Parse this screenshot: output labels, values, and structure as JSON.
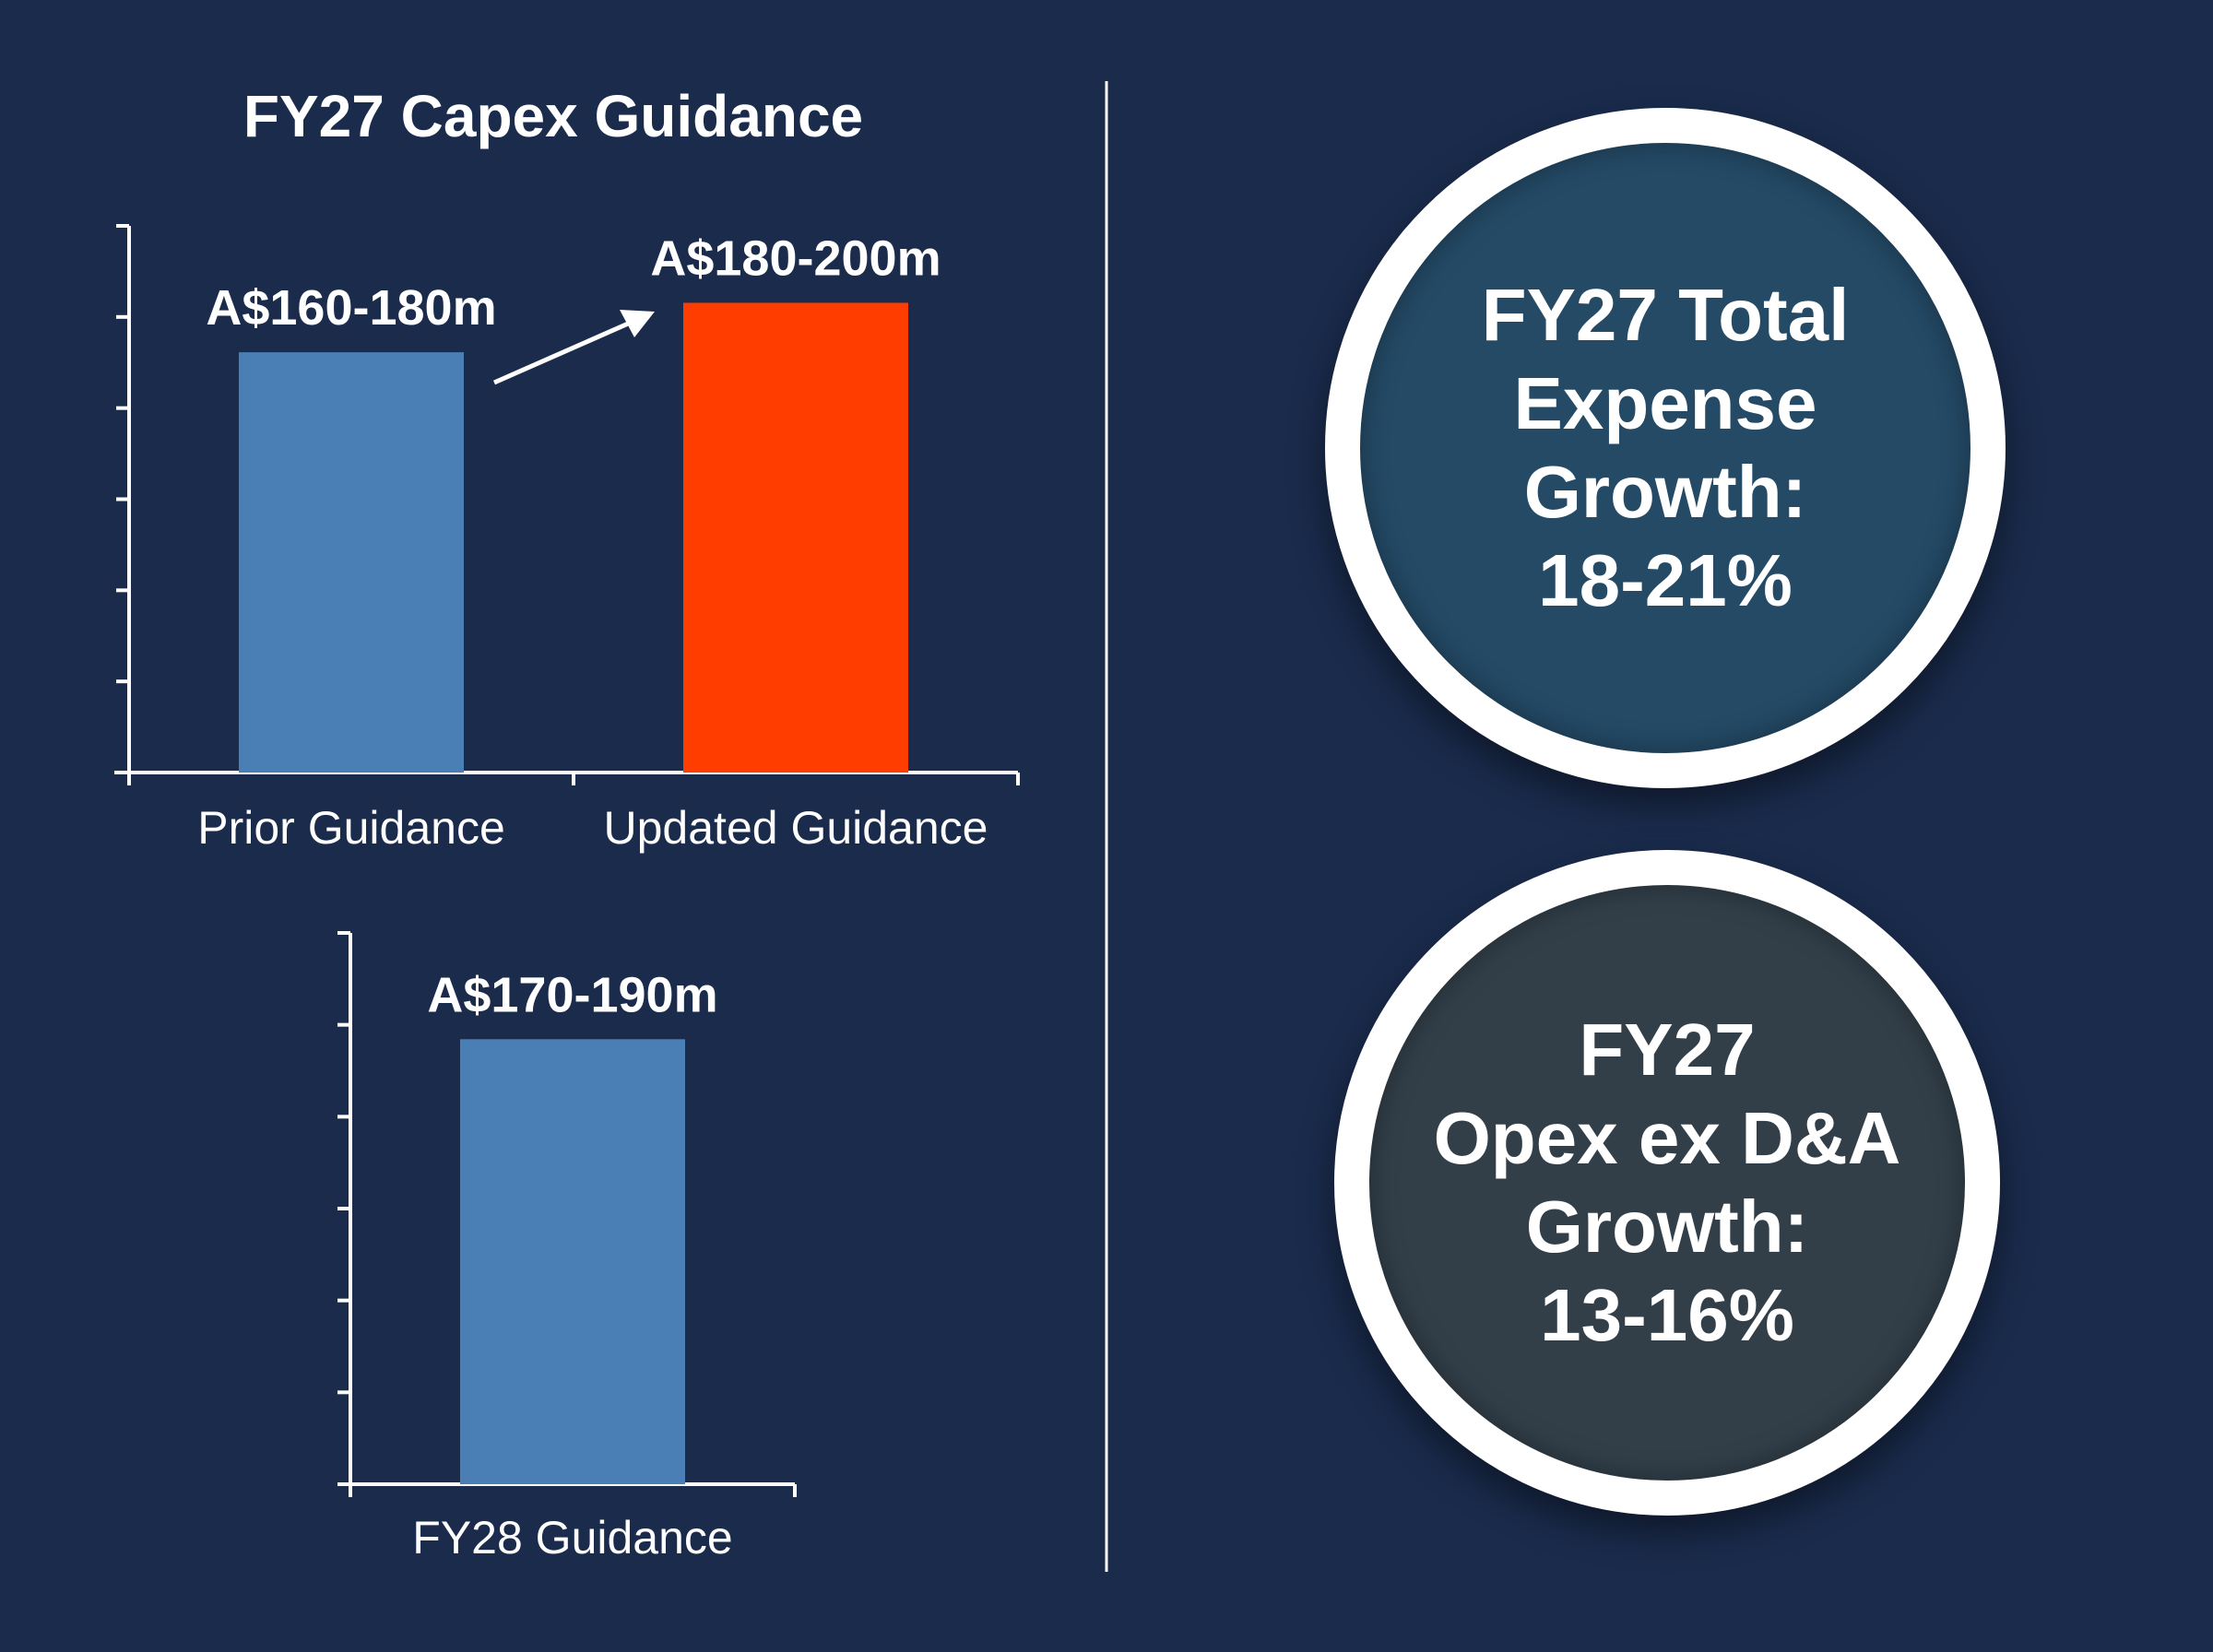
{
  "chart_data": [
    {
      "type": "bar",
      "title": "FY27 Capex Guidance",
      "categories": [
        "Prior Guidance",
        "Updated Guidance"
      ],
      "values": [
        170,
        190
      ],
      "value_labels": [
        "A$160-180m",
        "A$180-200m"
      ],
      "colors": [
        "#4a7fb5",
        "#ff3d00"
      ],
      "ylim": [
        0,
        220
      ],
      "grid": false,
      "annotation": "arrow from Prior Guidance to Updated Guidance"
    },
    {
      "type": "bar",
      "title": "",
      "categories": [
        "FY28 Guidance"
      ],
      "values": [
        180
      ],
      "value_labels": [
        "A$170-190m"
      ],
      "colors": [
        "#4a7fb5"
      ],
      "ylim": [
        0,
        220
      ],
      "grid": false
    }
  ],
  "callouts": [
    {
      "lines": [
        "FY27 Total",
        "Expense",
        "Growth:",
        "18-21%"
      ],
      "color": "#244a66"
    },
    {
      "lines": [
        "FY27",
        "Opex ex D&A",
        "Growth:",
        "13-16%"
      ],
      "color": "#323f49"
    }
  ],
  "colors": {
    "background": "#1a2b4c",
    "foreground": "#ffffff"
  }
}
